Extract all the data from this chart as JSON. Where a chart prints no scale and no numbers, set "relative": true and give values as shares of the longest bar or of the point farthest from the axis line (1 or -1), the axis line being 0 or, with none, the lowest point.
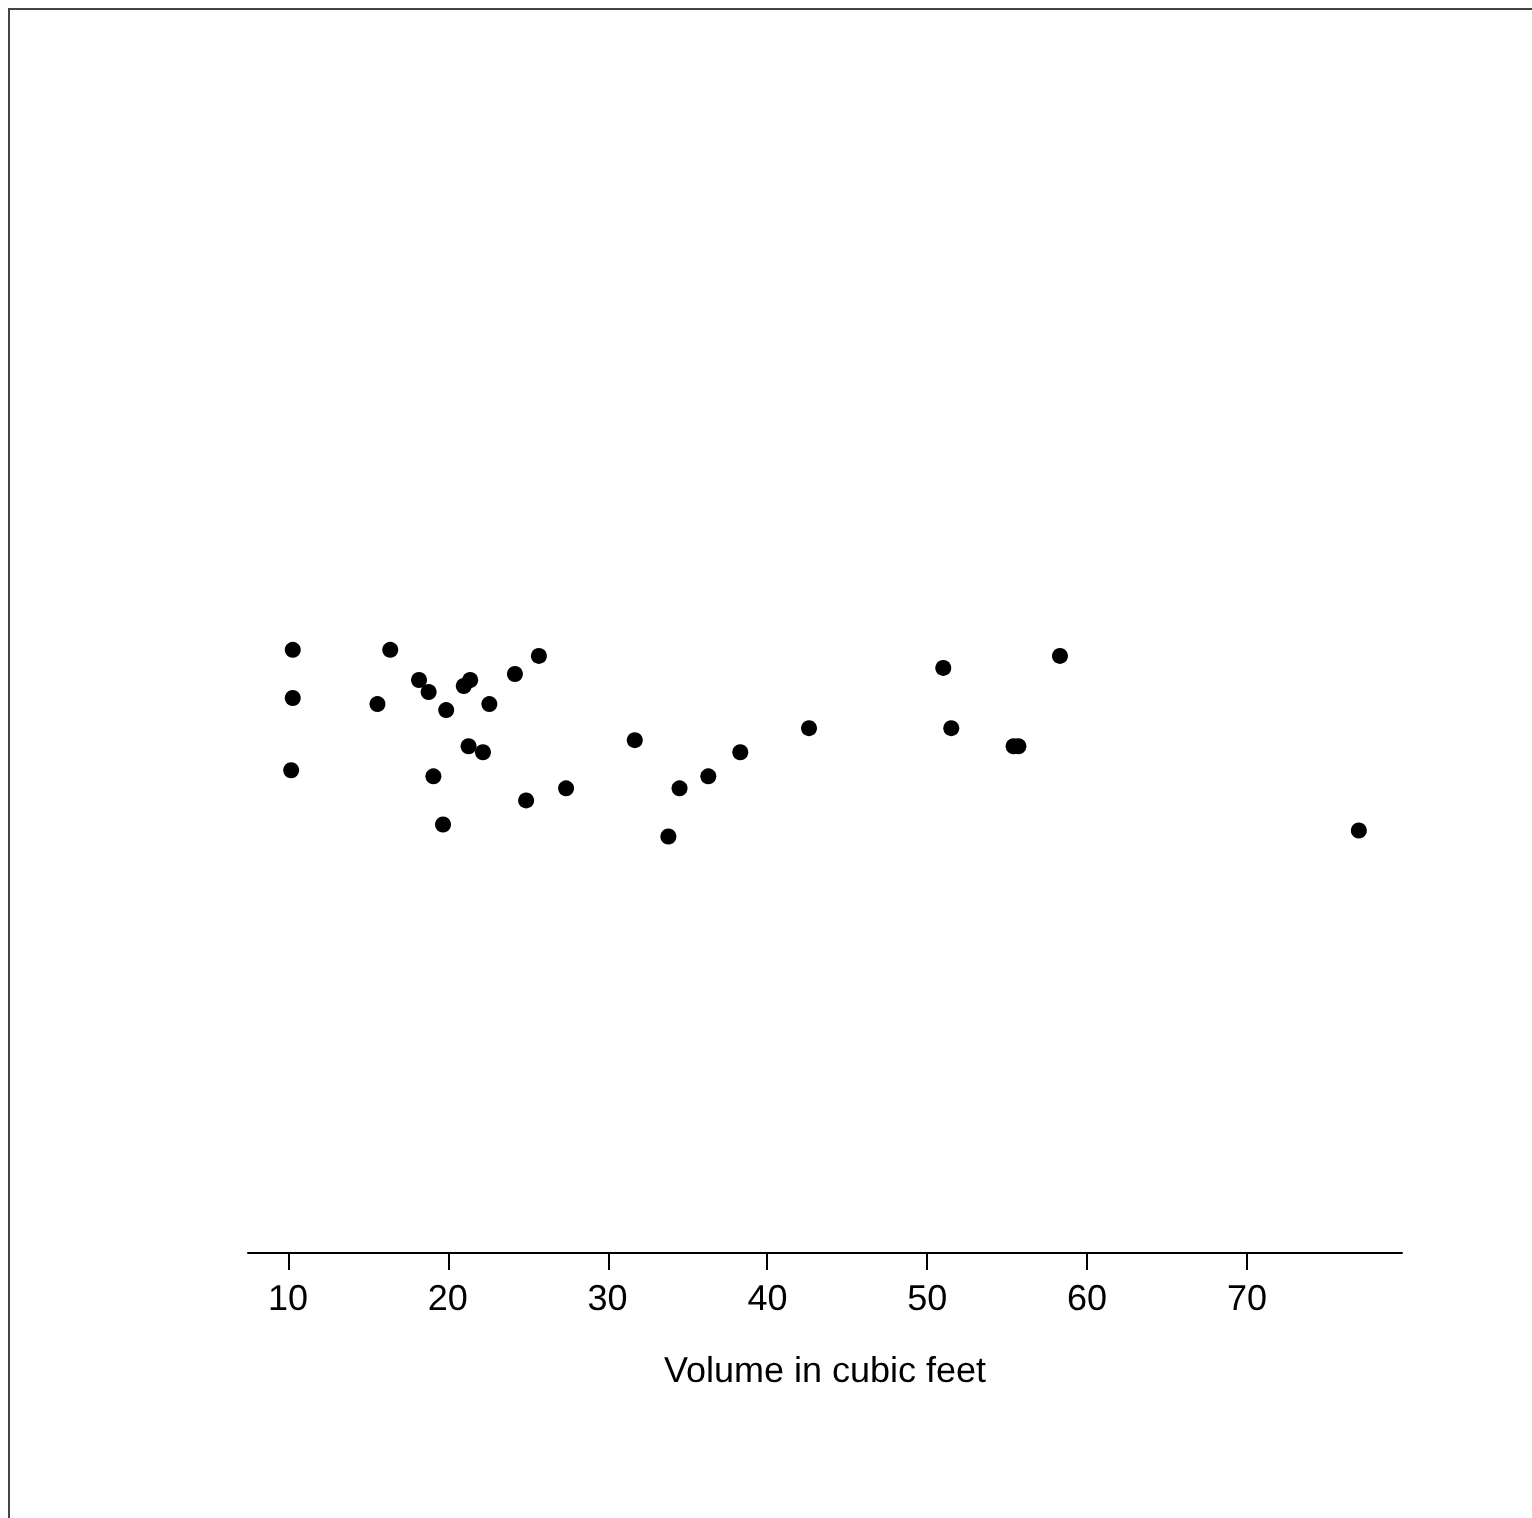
{
  "chart_data": {
    "type": "scatter",
    "xlabel": "Volume in cubic feet",
    "x": [
      10.3,
      10.3,
      10.2,
      16.4,
      18.8,
      19.7,
      15.6,
      18.2,
      22.6,
      19.9,
      24.2,
      21.0,
      21.4,
      21.3,
      19.1,
      22.2,
      33.8,
      27.4,
      25.7,
      24.9,
      34.5,
      31.7,
      36.3,
      38.3,
      42.6,
      55.4,
      55.7,
      58.3,
      51.5,
      51.0,
      77.0
    ],
    "values": [
      1.0,
      0.92,
      0.8,
      1.0,
      0.93,
      0.71,
      0.91,
      0.95,
      0.91,
      0.9,
      0.96,
      0.94,
      0.95,
      0.84,
      0.79,
      0.83,
      0.69,
      0.77,
      0.99,
      0.75,
      0.77,
      0.85,
      0.79,
      0.83,
      0.87,
      0.84,
      0.84,
      0.99,
      0.87,
      0.97,
      0.7
    ],
    "relative": true,
    "color": "#000000",
    "marker": "circle",
    "xlim": [
      7.5,
      79.7
    ],
    "xticks": [
      10,
      20,
      30,
      40,
      50,
      60,
      70
    ],
    "tick_labels": "x"
  }
}
